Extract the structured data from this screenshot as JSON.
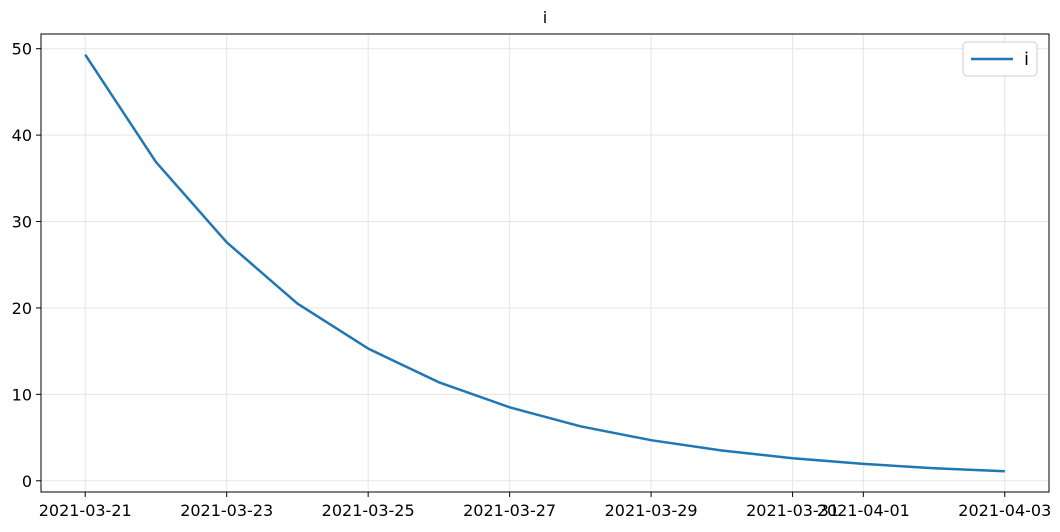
{
  "chart_data": {
    "type": "line",
    "title": "i",
    "xlabel": "",
    "ylabel": "",
    "x": [
      "2021-03-21",
      "2021-03-22",
      "2021-03-23",
      "2021-03-24",
      "2021-03-25",
      "2021-03-26",
      "2021-03-27",
      "2021-03-28",
      "2021-03-29",
      "2021-03-30",
      "2021-03-31",
      "2021-04-01",
      "2021-04-02",
      "2021-04-03"
    ],
    "series": [
      {
        "name": "i",
        "color": "#1f77b4",
        "values": [
          49.3,
          36.9,
          27.6,
          20.5,
          15.3,
          11.4,
          8.5,
          6.3,
          4.7,
          3.5,
          2.6,
          1.95,
          1.45,
          1.1
        ]
      }
    ],
    "xticks": [
      "2021-03-21",
      "2021-03-23",
      "2021-03-25",
      "2021-03-27",
      "2021-03-29",
      "2021-03-31",
      "2021-04-01",
      "2021-04-03"
    ],
    "yticks": [
      0,
      10,
      20,
      30,
      40,
      50
    ],
    "ylim": [
      -1.3,
      51.7
    ],
    "xlim": [
      "2021-03-20T09:00",
      "2021-04-03T15:00"
    ],
    "grid": true,
    "legend": "top-right"
  }
}
